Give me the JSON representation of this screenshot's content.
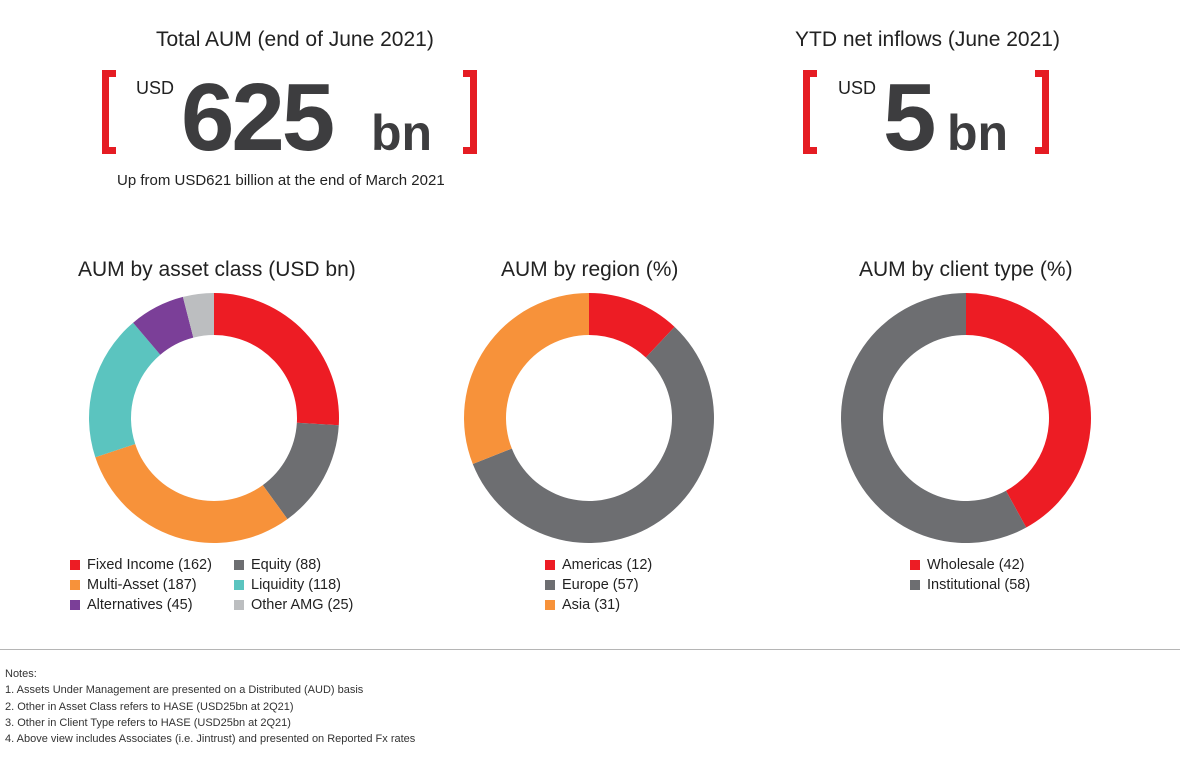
{
  "kpis": {
    "aum": {
      "title": "Total AUM (end of June 2021)",
      "currency": "USD",
      "value": "625",
      "unit": "bn",
      "subtitle": "Up from USD621 billion at the end of March 2021"
    },
    "inflows": {
      "title": "YTD net inflows (June 2021)",
      "currency": "USD",
      "value": "5",
      "unit": "bn"
    }
  },
  "colors": {
    "bracket": "#e51c23",
    "red": "#ed1c24",
    "grey": "#6d6e71",
    "orange": "#f7923a",
    "teal": "#5bc4bf",
    "purple": "#7b3f98",
    "lightgrey": "#bcbec0"
  },
  "chart_data": [
    {
      "type": "pie",
      "title": "AUM by asset class (USD bn)",
      "slices": [
        {
          "label": "Fixed Income (162)",
          "value": 162,
          "color": "#ed1c24"
        },
        {
          "label": "Equity (88)",
          "value": 88,
          "color": "#6d6e71"
        },
        {
          "label": "Multi-Asset (187)",
          "value": 187,
          "color": "#f7923a"
        },
        {
          "label": "Liquidity (118)",
          "value": 118,
          "color": "#5bc4bf"
        },
        {
          "label": "Alternatives (45)",
          "value": 45,
          "color": "#7b3f98"
        },
        {
          "label": "Other AMG (25)",
          "value": 25,
          "color": "#bcbec0"
        }
      ],
      "legend": [
        {
          "label": "Fixed Income (162)",
          "color": "#ed1c24"
        },
        {
          "label": "Equity (88)",
          "color": "#6d6e71"
        },
        {
          "label": "Multi-Asset (187)",
          "color": "#f7923a"
        },
        {
          "label": "Liquidity (118)",
          "color": "#5bc4bf"
        },
        {
          "label": "Alternatives (45)",
          "color": "#7b3f98"
        },
        {
          "label": "Other AMG (25)",
          "color": "#bcbec0"
        }
      ]
    },
    {
      "type": "pie",
      "title": "AUM by region (%)",
      "slices": [
        {
          "label": "Americas (12)",
          "value": 12,
          "color": "#ed1c24"
        },
        {
          "label": "Europe (57)",
          "value": 57,
          "color": "#6d6e71"
        },
        {
          "label": "Asia (31)",
          "value": 31,
          "color": "#f7923a"
        }
      ],
      "legend": [
        {
          "label": "Americas (12)",
          "color": "#ed1c24"
        },
        {
          "label": "Europe (57)",
          "color": "#6d6e71"
        },
        {
          "label": "Asia (31)",
          "color": "#f7923a"
        }
      ]
    },
    {
      "type": "pie",
      "title": "AUM by client type (%)",
      "slices": [
        {
          "label": "Wholesale (42)",
          "value": 42,
          "color": "#ed1c24"
        },
        {
          "label": "Institutional (58)",
          "value": 58,
          "color": "#6d6e71"
        }
      ],
      "legend": [
        {
          "label": "Wholesale (42)",
          "color": "#ed1c24"
        },
        {
          "label": "Institutional (58)",
          "color": "#6d6e71"
        }
      ]
    }
  ],
  "notes": {
    "heading": "Notes:",
    "lines": [
      "1. Assets Under Management are presented on a Distributed (AUD) basis",
      "2. Other in Asset Class refers to HASE (USD25bn at 2Q21)",
      "3. Other in Client Type refers to HASE (USD25bn at 2Q21)",
      "4. Above view includes Associates (i.e. Jintrust) and presented on Reported Fx rates"
    ]
  }
}
